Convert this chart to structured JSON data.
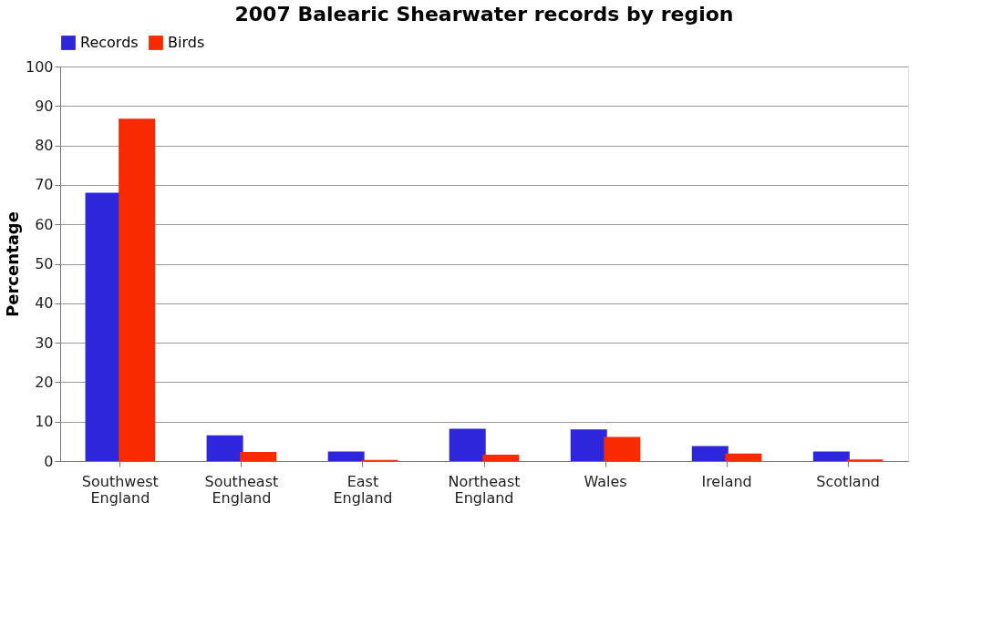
{
  "chart_data": {
    "type": "bar",
    "title": "2007 Balearic Shearwater records by region",
    "ylabel": "Percentage",
    "categories": [
      "Southwest England",
      "Southeast England",
      "East England",
      "Northeast England",
      "Wales",
      "Ireland",
      "Scotland"
    ],
    "series": [
      {
        "name": "Records",
        "color": "#2e26dc",
        "values": [
          68,
          6.5,
          2.4,
          8.2,
          8.0,
          3.8,
          2.4
        ]
      },
      {
        "name": "Birds",
        "color": "#fa2a00",
        "values": [
          86.8,
          2.3,
          0.3,
          1.6,
          6.1,
          1.9,
          0.4
        ]
      }
    ],
    "ylim": [
      0,
      100
    ],
    "yticks": [
      0,
      10,
      20,
      30,
      40,
      50,
      60,
      70,
      80,
      90,
      100
    ],
    "grid": "y",
    "legend": "top"
  }
}
